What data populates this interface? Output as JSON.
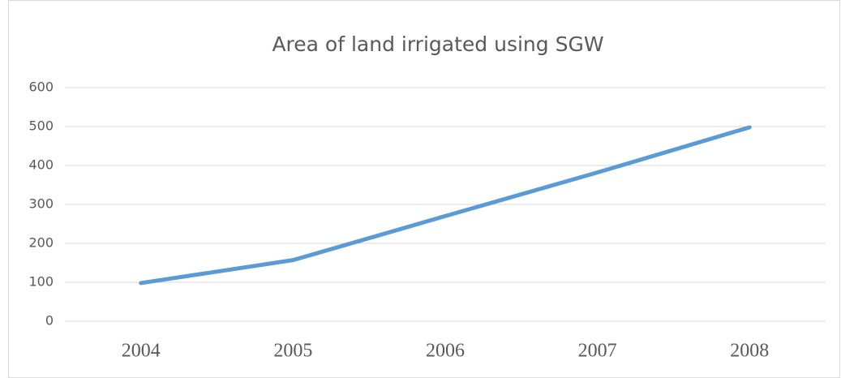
{
  "chart_data": {
    "type": "line",
    "title": "Area of land irrigated using SGW",
    "categories": [
      "2004",
      "2005",
      "2006",
      "2007",
      "2008"
    ],
    "series": [
      {
        "color": "#5b9bd5",
        "values": [
          98,
          157,
          270,
          382,
          498
        ]
      }
    ],
    "ylim": [
      0,
      600
    ],
    "yticks": [
      0,
      100,
      200,
      300,
      400,
      500,
      600
    ],
    "grid": true
  }
}
